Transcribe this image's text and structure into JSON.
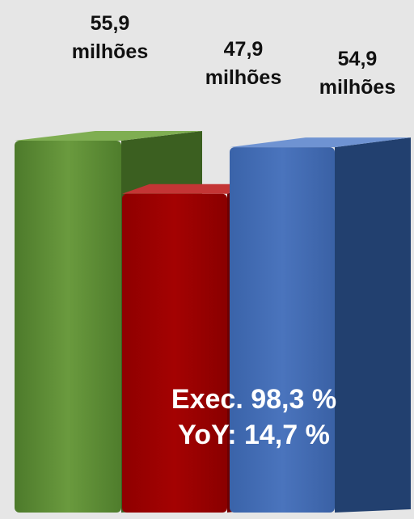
{
  "chart_data": {
    "type": "bar",
    "categories": [
      "",
      "",
      ""
    ],
    "values": [
      55.9,
      47.9,
      54.9
    ],
    "value_labels": [
      {
        "value": "55,9",
        "unit": "milhões"
      },
      {
        "value": "47,9",
        "unit": "milhões"
      },
      {
        "value": "54,9",
        "unit": "milhões"
      }
    ],
    "colors": [
      "#5b8a34",
      "#b50c0c",
      "#3f69b3"
    ],
    "style": "3d-overlapping-columns",
    "title": "",
    "xlabel": "",
    "ylabel": "",
    "ylim": [
      0,
      60
    ],
    "grid": false,
    "legend": "none",
    "annotations": [
      "Exec. 98,3 %",
      "YoY: 14,7 %"
    ]
  }
}
